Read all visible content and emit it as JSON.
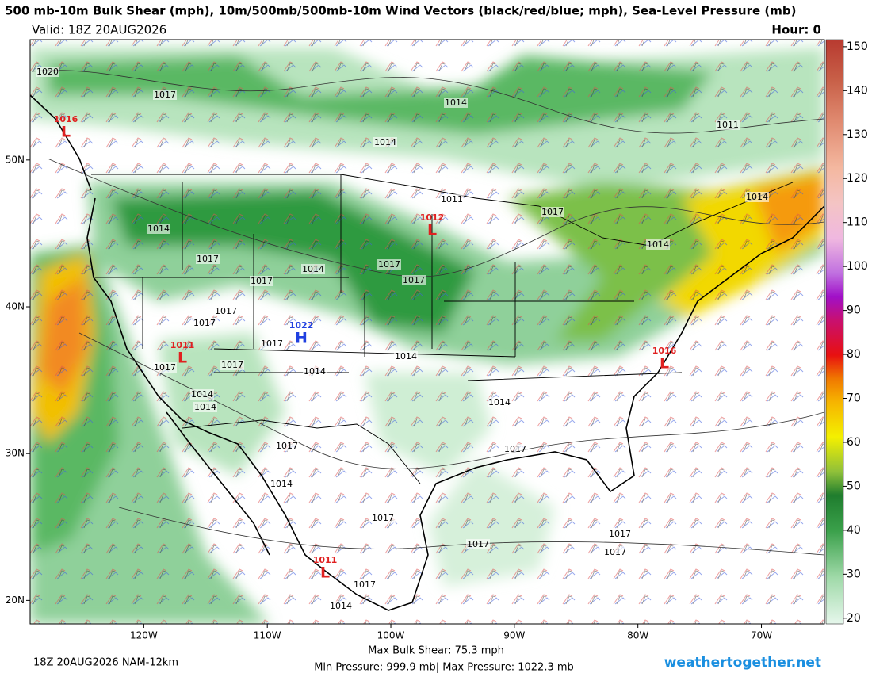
{
  "header": {
    "title": "500 mb-10m Bulk Shear (mph), 10m/500mb/500mb-10m Wind Vectors (black/red/blue; mph), Sea-Level Pressure (mb)",
    "valid": "Valid: 18Z 20AUG2026",
    "hour": "Hour: 0"
  },
  "axes": {
    "xlim": [
      -129.2,
      -64.9
    ],
    "ylim": [
      18.4,
      58.2
    ],
    "xticks": [
      {
        "value": -120,
        "label": "120W"
      },
      {
        "value": -110,
        "label": "110W"
      },
      {
        "value": -100,
        "label": "100W"
      },
      {
        "value": -90,
        "label": "90W"
      },
      {
        "value": -80,
        "label": "80W"
      },
      {
        "value": -70,
        "label": "70W"
      }
    ],
    "yticks": [
      {
        "value": 50,
        "label": "50N"
      },
      {
        "value": 40,
        "label": "40N"
      },
      {
        "value": 30,
        "label": "30N"
      },
      {
        "value": 20,
        "label": "20N"
      }
    ]
  },
  "colorbar": {
    "range": [
      18.7,
      151.6
    ],
    "ticks": [
      20,
      30,
      40,
      50,
      60,
      70,
      80,
      90,
      100,
      110,
      120,
      130,
      140,
      150
    ]
  },
  "isobar_labels": [
    "1020",
    "1017",
    "1014",
    "1011",
    "1014",
    "1011",
    "1017",
    "1014",
    "1014",
    "1017",
    "1014",
    "1017",
    "1017",
    "1017",
    "1014",
    "1017",
    "1017",
    "1017",
    "1017",
    "1017",
    "1014",
    "1014",
    "1014",
    "1014",
    "1017",
    "1017",
    "1014",
    "1017",
    "1017",
    "1017",
    "1017",
    "1017",
    "1014",
    "1014"
  ],
  "centers": [
    {
      "letter": "L",
      "pressure": "1016",
      "color": "#e02020"
    },
    {
      "letter": "L",
      "pressure": "1012",
      "color": "#e02020"
    },
    {
      "letter": "H",
      "pressure": "1022",
      "color": "#2040e0"
    },
    {
      "letter": "L",
      "pressure": "1011",
      "color": "#e02020"
    },
    {
      "letter": "L",
      "pressure": "1016",
      "color": "#e02020"
    },
    {
      "letter": "L",
      "pressure": "1011",
      "color": "#e02020"
    }
  ],
  "footer": {
    "model": "18Z 20AUG2026 NAM-12km",
    "max_shear": "Max Bulk Shear:  75.3 mph",
    "pressure_range": "Min Pressure: 999.9 mb| Max Pressure: 1022.3 mb",
    "site": "weathertogether.net"
  }
}
